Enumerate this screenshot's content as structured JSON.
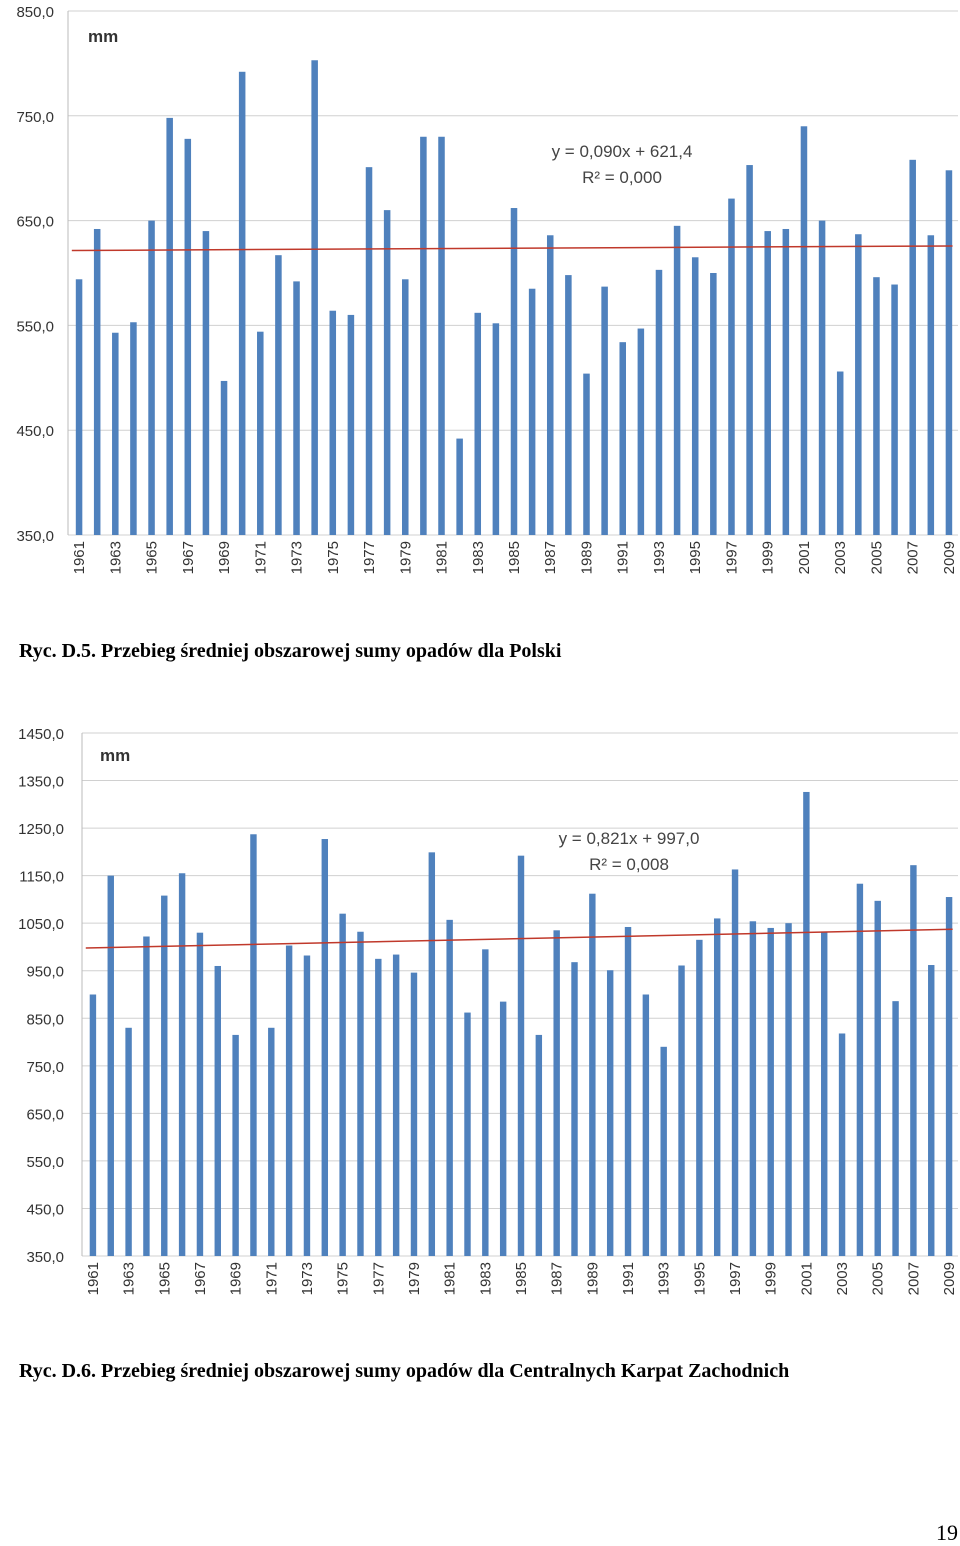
{
  "page_number": "19",
  "chart_data": [
    {
      "type": "bar",
      "unit_label": "mm",
      "equation": "y = 0,090x + 621,4",
      "r2": "R² = 0,000",
      "caption": "Ryc. D.5. Przebieg średniej obszarowej sumy opadów dla Polski",
      "yticks": [
        "850,0",
        "750,0",
        "650,0",
        "550,0",
        "450,0",
        "350,0"
      ],
      "ylim": [
        350,
        850
      ],
      "xtick_labels": [
        "1961",
        "1963",
        "1965",
        "1967",
        "1969",
        "1971",
        "1973",
        "1975",
        "1977",
        "1979",
        "1981",
        "1983",
        "1985",
        "1987",
        "1989",
        "1991",
        "1993",
        "1995",
        "1997",
        "1999",
        "2001",
        "2003",
        "2005",
        "2007",
        "2009"
      ],
      "categories": [
        1961,
        1962,
        1963,
        1964,
        1965,
        1966,
        1967,
        1968,
        1969,
        1970,
        1971,
        1972,
        1973,
        1974,
        1975,
        1976,
        1977,
        1978,
        1979,
        1980,
        1981,
        1982,
        1983,
        1984,
        1985,
        1986,
        1987,
        1988,
        1989,
        1990,
        1991,
        1992,
        1993,
        1994,
        1995,
        1996,
        1997,
        1998,
        1999,
        2000,
        2001,
        2002,
        2003,
        2004,
        2005,
        2006,
        2007,
        2008,
        2009
      ],
      "values": [
        594,
        642,
        543,
        553,
        650,
        748,
        728,
        640,
        497,
        792,
        544,
        617,
        592,
        803,
        564,
        560,
        701,
        660,
        594,
        730,
        730,
        442,
        562,
        552,
        662,
        585,
        636,
        598,
        504,
        587,
        534,
        547,
        603,
        645,
        615,
        600,
        671,
        703,
        640,
        642,
        740,
        650,
        506,
        637,
        596,
        589,
        708,
        636,
        698
      ],
      "trend": {
        "slope": 0.09,
        "intercept": 621.4
      },
      "grid": true,
      "colors": {
        "bar": "#4f81bd",
        "trend": "#c0392b",
        "grid": "#d0d0d0"
      }
    },
    {
      "type": "bar",
      "unit_label": "mm",
      "equation": "y = 0,821x + 997,0",
      "r2": "R² = 0,008",
      "caption": "Ryc. D.6. Przebieg średniej obszarowej sumy opadów dla Centralnych Karpat Zachodnich",
      "yticks": [
        "1450,0",
        "1350,0",
        "1250,0",
        "1150,0",
        "1050,0",
        "950,0",
        "850,0",
        "750,0",
        "650,0",
        "550,0",
        "450,0",
        "350,0"
      ],
      "ylim": [
        350,
        1450
      ],
      "xtick_labels": [
        "1961",
        "1963",
        "1965",
        "1967",
        "1969",
        "1971",
        "1973",
        "1975",
        "1977",
        "1979",
        "1981",
        "1983",
        "1985",
        "1987",
        "1989",
        "1991",
        "1993",
        "1995",
        "1997",
        "1999",
        "2001",
        "2003",
        "2005",
        "2007",
        "2009"
      ],
      "categories": [
        1961,
        1962,
        1963,
        1964,
        1965,
        1966,
        1967,
        1968,
        1969,
        1970,
        1971,
        1972,
        1973,
        1974,
        1975,
        1976,
        1977,
        1978,
        1979,
        1980,
        1981,
        1982,
        1983,
        1984,
        1985,
        1986,
        1987,
        1988,
        1989,
        1990,
        1991,
        1992,
        1993,
        1994,
        1995,
        1996,
        1997,
        1998,
        1999,
        2000,
        2001,
        2002,
        2003,
        2004,
        2005,
        2006,
        2007,
        2008,
        2009
      ],
      "values": [
        900,
        1150,
        830,
        1022,
        1108,
        1155,
        1030,
        960,
        815,
        1237,
        830,
        1003,
        982,
        1227,
        1070,
        1032,
        975,
        984,
        946,
        1199,
        1057,
        862,
        995,
        885,
        1192,
        815,
        1035,
        968,
        1112,
        951,
        1042,
        900,
        790,
        961,
        1015,
        1060,
        1163,
        1054,
        1040,
        1050,
        1326,
        1032,
        818,
        1133,
        1097,
        886,
        1172,
        962,
        1105
      ],
      "trend": {
        "slope": 0.821,
        "intercept": 997.0
      },
      "grid": true,
      "colors": {
        "bar": "#4f81bd",
        "trend": "#c0392b",
        "grid": "#d0d0d0"
      }
    }
  ]
}
